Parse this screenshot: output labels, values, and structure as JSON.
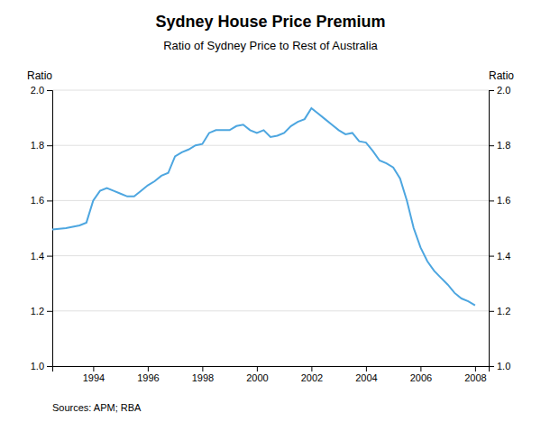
{
  "chart_data": {
    "type": "line",
    "title": "Sydney House Price Premium",
    "subtitle": "Ratio of Sydney Price to Rest of Australia",
    "ylabel": "Ratio",
    "y2label": "Ratio",
    "source": "Sources: APM; RBA",
    "color": "#4da6e0",
    "grid": true,
    "xlim": [
      1992.5,
      2008.5
    ],
    "xticks": [
      1994,
      1996,
      1998,
      2000,
      2002,
      2004,
      2006,
      2008
    ],
    "ylim": [
      1.0,
      2.0
    ],
    "yticks": [
      {
        "value": 1.0,
        "label": "1.0"
      },
      1.2,
      1.4,
      1.6,
      1.8,
      {
        "value": 2.0,
        "label": "2.0"
      }
    ],
    "y2lim": [
      1.0,
      2.0
    ],
    "y2ticks": [
      {
        "value": 1.0,
        "label": "1.0"
      },
      1.2,
      1.4,
      1.6,
      1.8,
      {
        "value": 2.0,
        "label": "2.0"
      }
    ],
    "x": [
      1992.5,
      1993.0,
      1993.25,
      1993.5,
      1993.75,
      1994.0,
      1994.25,
      1994.5,
      1994.75,
      1995.0,
      1995.25,
      1995.5,
      1995.75,
      1996.0,
      1996.25,
      1996.5,
      1996.75,
      1997.0,
      1997.25,
      1997.5,
      1997.75,
      1998.0,
      1998.25,
      1998.5,
      1998.75,
      1999.0,
      1999.25,
      1999.5,
      1999.75,
      2000.0,
      2000.25,
      2000.5,
      2000.75,
      2001.0,
      2001.25,
      2001.5,
      2001.75,
      2002.0,
      2002.25,
      2002.5,
      2002.75,
      2003.0,
      2003.25,
      2003.5,
      2003.75,
      2004.0,
      2004.25,
      2004.5,
      2004.75,
      2005.0,
      2005.25,
      2005.5,
      2005.75,
      2006.0,
      2006.25,
      2006.5,
      2006.75,
      2007.0,
      2007.25,
      2007.5,
      2007.75,
      2008.0
    ],
    "values": [
      1.495,
      1.5,
      1.505,
      1.51,
      1.52,
      1.6,
      1.635,
      1.645,
      1.635,
      1.625,
      1.615,
      1.615,
      1.635,
      1.655,
      1.67,
      1.69,
      1.7,
      1.76,
      1.775,
      1.785,
      1.8,
      1.805,
      1.845,
      1.855,
      1.855,
      1.855,
      1.87,
      1.875,
      1.855,
      1.845,
      1.855,
      1.83,
      1.835,
      1.845,
      1.87,
      1.885,
      1.895,
      1.935,
      1.915,
      1.895,
      1.875,
      1.855,
      1.84,
      1.845,
      1.815,
      1.81,
      1.78,
      1.745,
      1.735,
      1.72,
      1.68,
      1.6,
      1.5,
      1.43,
      1.38,
      1.345,
      1.32,
      1.295,
      1.265,
      1.245,
      1.235,
      1.22
    ]
  }
}
